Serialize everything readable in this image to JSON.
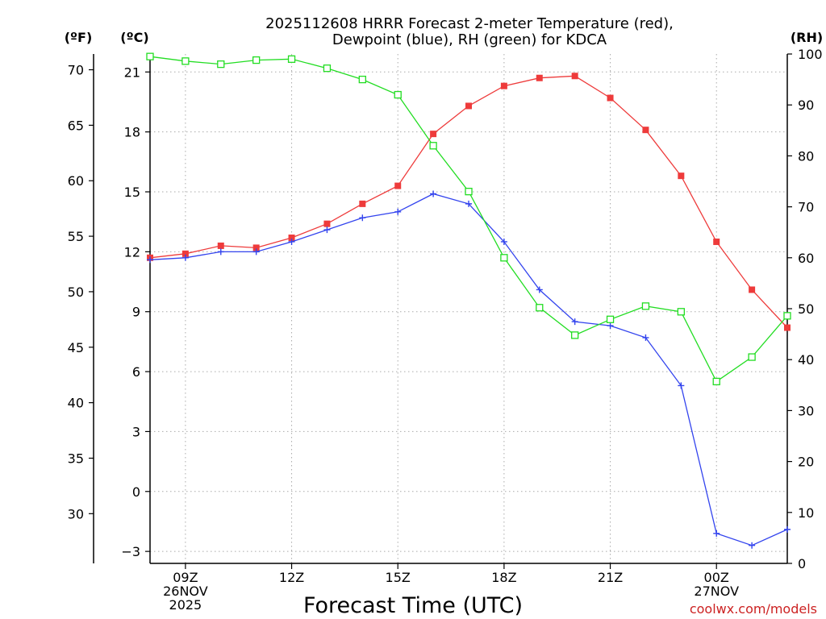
{
  "title": {
    "line1": "2025112608 HRRR Forecast 2-meter Temperature (red),",
    "line2": "Dewpoint (blue), RH (green) for KDCA"
  },
  "units": {
    "left_f": "(ºF)",
    "left_c": "(ºC)",
    "right_rh": "(RH)"
  },
  "xlabel": "Forecast Time (UTC)",
  "credit": "coolwx.com/models",
  "colors": {
    "temperature": "#ee3b3b",
    "dewpoint": "#3344ee",
    "rh": "#22dd22",
    "grid": "#aaaaaa",
    "axis": "#000000",
    "credit": "#cc2222"
  },
  "chart_data": {
    "type": "line",
    "title": "2025112608 HRRR Forecast 2-meter Temperature (red), Dewpoint (blue), RH (green) for KDCA",
    "xlabel": "Forecast Time (UTC)",
    "x_hours": [
      8,
      9,
      10,
      11,
      12,
      13,
      14,
      15,
      16,
      17,
      18,
      19,
      20,
      21,
      22,
      23,
      24,
      25,
      26
    ],
    "xlim": [
      8,
      26
    ],
    "xticks": [
      {
        "hour": 9,
        "lines": [
          "09Z",
          "26NOV",
          "2025"
        ]
      },
      {
        "hour": 12,
        "lines": [
          "12Z"
        ]
      },
      {
        "hour": 15,
        "lines": [
          "15Z"
        ]
      },
      {
        "hour": 18,
        "lines": [
          "18Z"
        ]
      },
      {
        "hour": 21,
        "lines": [
          "21Z"
        ]
      },
      {
        "hour": 24,
        "lines": [
          "00Z",
          "27NOV"
        ]
      }
    ],
    "y_celsius": {
      "label": "(ºC)",
      "ylim": [
        -3.6,
        21.9
      ],
      "ticks": [
        -3,
        0,
        3,
        6,
        9,
        12,
        15,
        18,
        21
      ]
    },
    "y_fahrenheit": {
      "label": "(ºF)",
      "ticks": [
        30,
        35,
        40,
        45,
        50,
        55,
        60,
        65,
        70
      ]
    },
    "y_rh": {
      "label": "(RH)",
      "ylim": [
        0,
        100
      ],
      "ticks": [
        0,
        10,
        20,
        30,
        40,
        50,
        60,
        70,
        80,
        90,
        100
      ]
    },
    "series": [
      {
        "name": "Temperature",
        "axis": "celsius",
        "marker": "filled-square",
        "color": "#ee3b3b",
        "values": [
          11.7,
          11.9,
          12.3,
          12.2,
          12.7,
          13.4,
          14.4,
          15.3,
          17.9,
          19.3,
          20.3,
          20.7,
          20.8,
          19.7,
          18.1,
          15.8,
          12.5,
          10.1,
          8.2
        ]
      },
      {
        "name": "Dewpoint",
        "axis": "celsius",
        "marker": "plus",
        "color": "#3344ee",
        "values": [
          11.6,
          11.7,
          12.0,
          12.0,
          12.5,
          13.1,
          13.7,
          14.0,
          14.9,
          14.4,
          12.5,
          10.1,
          8.5,
          8.3,
          7.7,
          5.3,
          -2.1,
          -2.7,
          -1.9
        ]
      },
      {
        "name": "RH",
        "axis": "rh",
        "marker": "open-square",
        "color": "#22dd22",
        "values": [
          99.5,
          98.6,
          98.0,
          98.8,
          99.0,
          97.2,
          95.0,
          92.0,
          82.0,
          73.0,
          60.0,
          50.2,
          44.8,
          47.9,
          50.5,
          49.4,
          35.7,
          40.5,
          48.6
        ]
      }
    ]
  }
}
